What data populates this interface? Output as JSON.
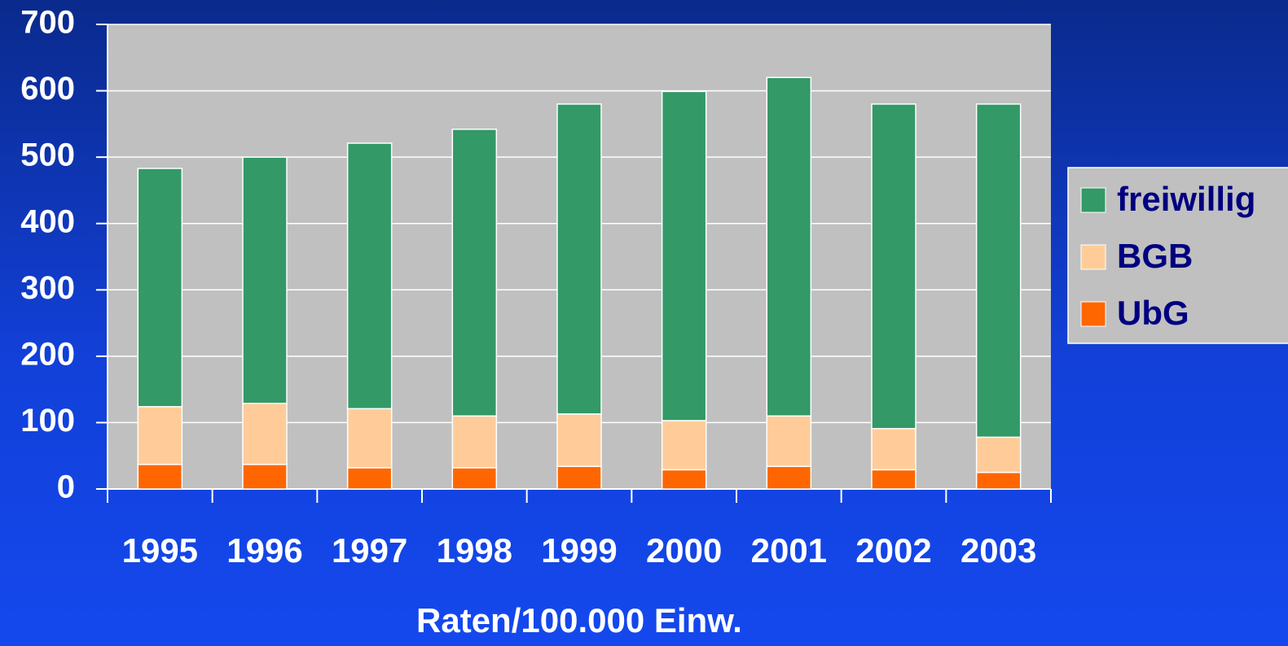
{
  "chart_data": {
    "type": "stacked_bar",
    "x_label": "Raten/100.000 Einw.",
    "categories": [
      "1995",
      "1996",
      "1997",
      "1998",
      "1999",
      "2000",
      "2001",
      "2002",
      "2003"
    ],
    "series": [
      {
        "name": "UbG",
        "color": "#ff6600",
        "values": [
          37,
          37,
          32,
          32,
          34,
          29,
          34,
          29,
          25
        ]
      },
      {
        "name": "BGB",
        "color": "#ffcc99",
        "values": [
          87,
          92,
          89,
          78,
          79,
          74,
          76,
          62,
          53
        ]
      },
      {
        "name": "freiwillig",
        "color": "#339966",
        "values": [
          359,
          371,
          400,
          432,
          467,
          496,
          510,
          489,
          502
        ]
      }
    ],
    "ylim": [
      0,
      700
    ],
    "yticks": [
      0,
      100,
      200,
      300,
      400,
      500,
      600,
      700
    ],
    "grid": true,
    "legend": "right"
  }
}
